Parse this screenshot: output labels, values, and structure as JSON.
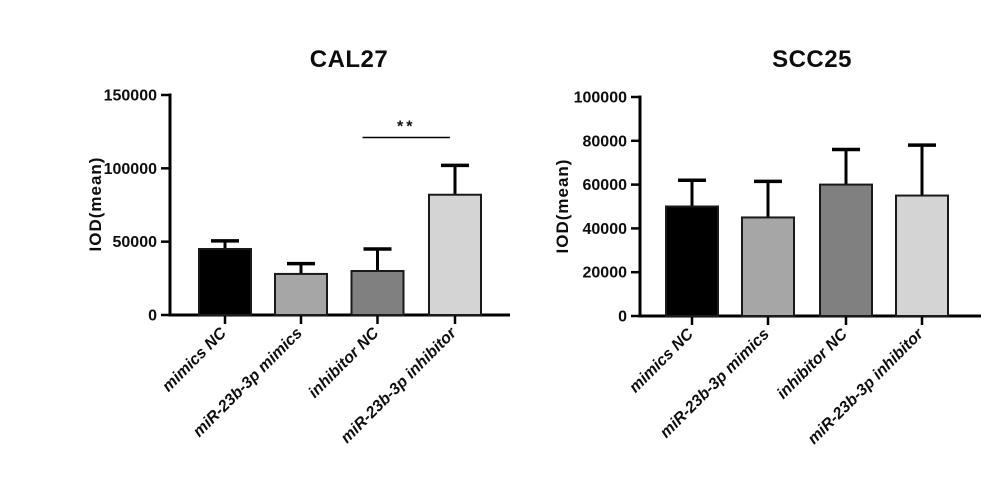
{
  "chart_data": [
    {
      "type": "bar",
      "title": "CAL27",
      "xlabel": "",
      "ylabel": "IOD(mean)",
      "ylim": [
        0,
        150000
      ],
      "yticks": [
        0,
        50000,
        100000,
        150000
      ],
      "grid": false,
      "legend_position": "none",
      "categories": [
        "mimics NC",
        "miR-23b-3p mimics",
        "inhibitor NC",
        "miR-23b-3p inhibitor"
      ],
      "values": [
        45000,
        28000,
        30000,
        82000
      ],
      "errors_plus": [
        5500,
        7000,
        15000,
        20000
      ],
      "bar_colors": [
        "#000000",
        "#a6a6a6",
        "#808080",
        "#d4d4d4"
      ],
      "bar_outline_color": "#1a1a1a",
      "significance": {
        "label": "**",
        "between": [
          2,
          3
        ],
        "line_y": 121000
      }
    },
    {
      "type": "bar",
      "title": "SCC25",
      "xlabel": "",
      "ylabel": "IOD(mean)",
      "ylim": [
        0,
        100000
      ],
      "yticks": [
        0,
        20000,
        40000,
        60000,
        80000,
        100000
      ],
      "grid": false,
      "legend_position": "none",
      "categories": [
        "mimics NC",
        "miR-23b-3p mimics",
        "inhibitor NC",
        "miR-23b-3p inhibitor"
      ],
      "values": [
        50000,
        45000,
        60000,
        55000
      ],
      "errors_plus": [
        12000,
        16500,
        16000,
        23000
      ],
      "bar_colors": [
        "#000000",
        "#a6a6a6",
        "#808080",
        "#d4d4d4"
      ],
      "bar_outline_color": "#1a1a1a",
      "significance": null
    }
  ]
}
